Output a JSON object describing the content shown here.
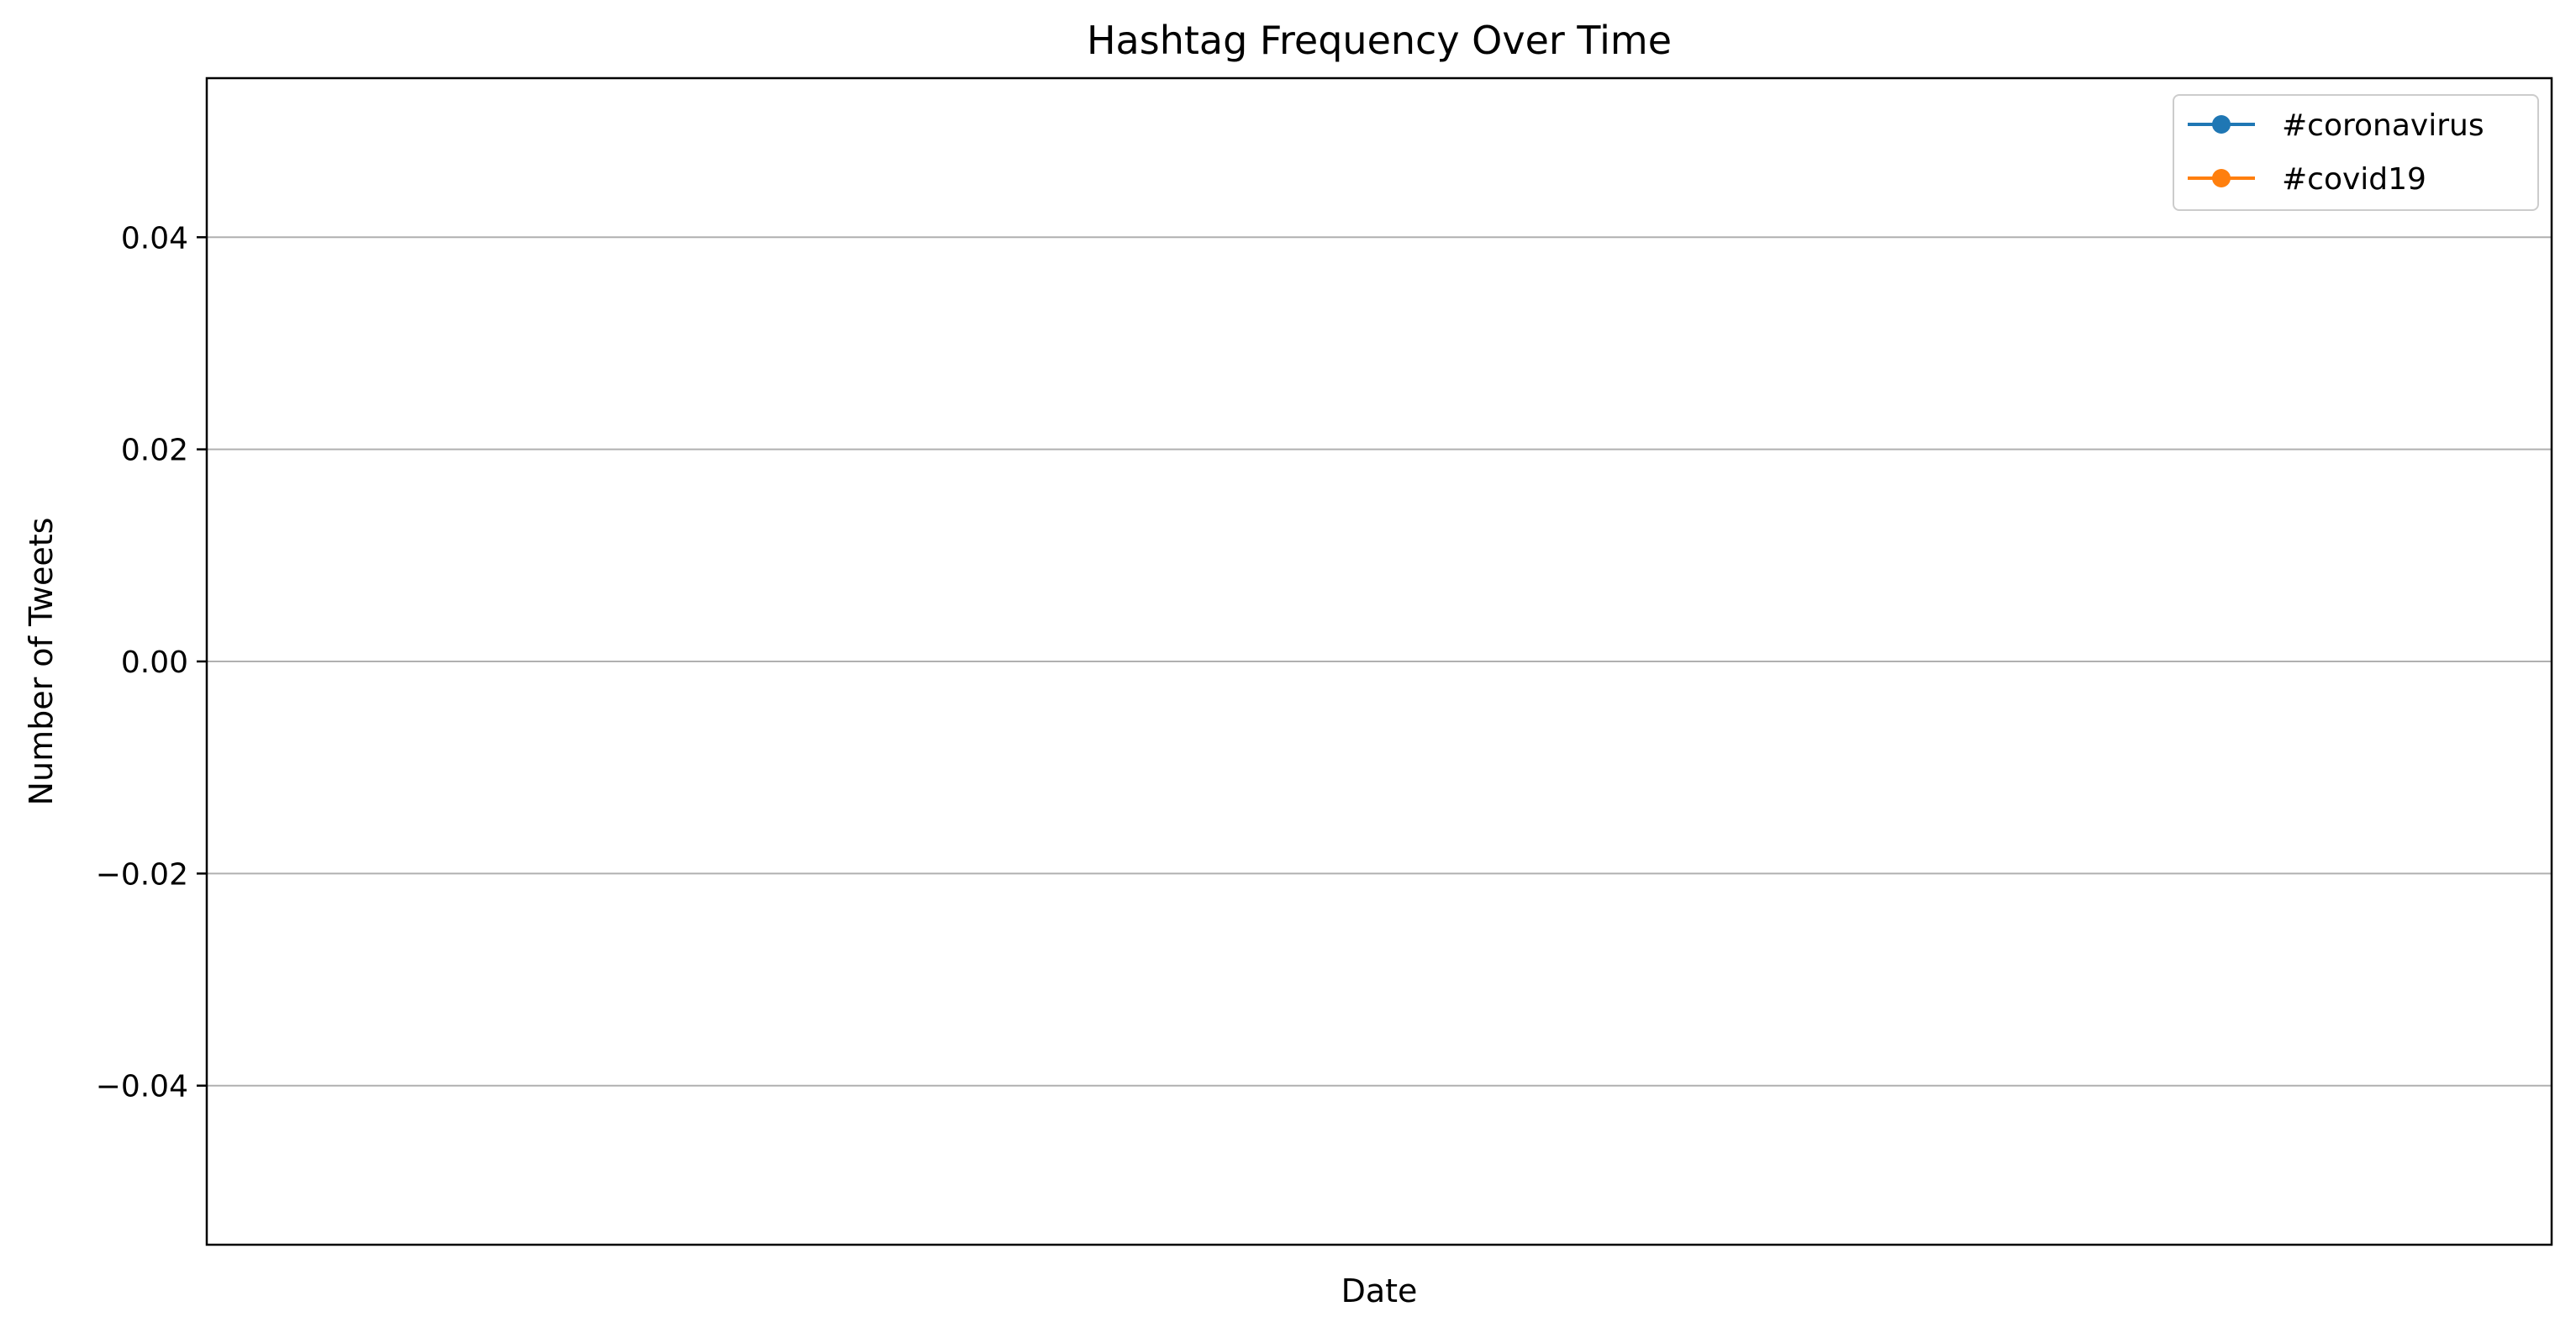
{
  "chart_data": {
    "type": "line",
    "title": "Hashtag Frequency Over Time",
    "xlabel": "Date",
    "ylabel": "Number of Tweets",
    "ylim": [
      -0.055,
      0.055
    ],
    "yticks": [
      -0.04,
      -0.02,
      0.0,
      0.02,
      0.04
    ],
    "ytick_labels": [
      "−0.04",
      "−0.02",
      "0.00",
      "0.02",
      "0.04"
    ],
    "grid": "y-axis only",
    "legend_position": "top-right",
    "x": [],
    "series": [
      {
        "name": "#coronavirus",
        "color": "#1f77b4",
        "marker": "circle",
        "values": []
      },
      {
        "name": "#covid19",
        "color": "#ff7f0e",
        "marker": "circle",
        "values": []
      }
    ]
  },
  "colors": {
    "grid": "#b0b0b0",
    "axes": "#000000",
    "legend_border": "#cccccc",
    "background": "#ffffff"
  }
}
